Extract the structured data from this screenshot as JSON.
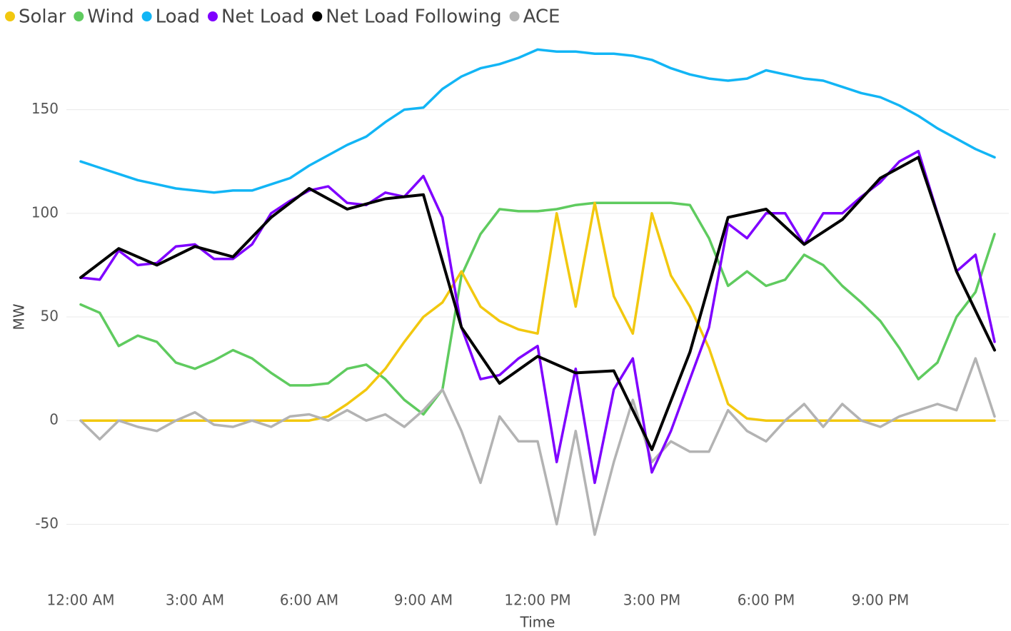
{
  "chart_data": {
    "type": "line",
    "x_label": "Time",
    "y_label": "MW",
    "xlim": [
      0,
      24
    ],
    "ylim": [
      -65,
      185
    ],
    "xticks": [
      {
        "value": 0,
        "label": "12:00 AM"
      },
      {
        "value": 3,
        "label": "3:00 AM"
      },
      {
        "value": 6,
        "label": "6:00 AM"
      },
      {
        "value": 9,
        "label": "9:00 AM"
      },
      {
        "value": 12,
        "label": "12:00 PM"
      },
      {
        "value": 15,
        "label": "3:00 PM"
      },
      {
        "value": 18,
        "label": "6:00 PM"
      },
      {
        "value": 21,
        "label": "9:00 PM"
      }
    ],
    "yticks": [
      -50,
      0,
      50,
      100,
      150
    ],
    "grid": true,
    "legend": "top-left",
    "x": [
      0,
      0.5,
      1,
      1.5,
      2,
      2.5,
      3,
      3.5,
      4,
      4.5,
      5,
      5.5,
      6,
      6.5,
      7,
      7.5,
      8,
      8.5,
      9,
      9.5,
      10,
      10.5,
      11,
      11.5,
      12,
      12.5,
      13,
      13.5,
      14,
      14.5,
      15,
      15.5,
      16,
      16.5,
      17,
      17.5,
      18,
      18.5,
      19,
      19.5,
      20,
      20.5,
      21,
      21.5,
      22,
      22.5,
      23,
      23.5,
      24
    ],
    "series": [
      {
        "name": "Solar",
        "color": "#F2C80F",
        "values": [
          0,
          0,
          0,
          0,
          0,
          0,
          0,
          0,
          0,
          0,
          0,
          0,
          0,
          2,
          8,
          15,
          25,
          38,
          50,
          57,
          72,
          55,
          48,
          44,
          42,
          100,
          55,
          105,
          60,
          42,
          100,
          70,
          55,
          35,
          8,
          1,
          0,
          0,
          0,
          0,
          0,
          0,
          0,
          0,
          0,
          0,
          0,
          0,
          0
        ]
      },
      {
        "name": "Wind",
        "color": "#5FCB5F",
        "values": [
          56,
          52,
          36,
          41,
          38,
          28,
          25,
          29,
          34,
          30,
          23,
          17,
          17,
          18,
          25,
          27,
          20,
          10,
          3,
          15,
          70,
          90,
          102,
          101,
          101,
          102,
          104,
          105,
          105,
          105,
          105,
          105,
          104,
          88,
          65,
          72,
          65,
          68,
          80,
          75,
          65,
          57,
          48,
          35,
          20,
          28,
          50,
          62,
          90
        ]
      },
      {
        "name": "Load",
        "color": "#12B5F5",
        "values": [
          125,
          122,
          119,
          116,
          114,
          112,
          111,
          110,
          111,
          111,
          114,
          117,
          123,
          128,
          133,
          137,
          144,
          150,
          151,
          160,
          166,
          170,
          172,
          175,
          179,
          178,
          178,
          177,
          177,
          176,
          174,
          170,
          167,
          165,
          164,
          165,
          169,
          167,
          165,
          164,
          161,
          158,
          156,
          152,
          147,
          141,
          136,
          131,
          127
        ]
      },
      {
        "name": "Net Load",
        "color": "#7F00FF",
        "values": [
          69,
          68,
          82,
          75,
          76,
          84,
          85,
          78,
          78,
          85,
          100,
          106,
          111,
          113,
          105,
          104,
          110,
          108,
          118,
          98,
          45,
          20,
          22,
          30,
          36,
          -20,
          25,
          -30,
          15,
          30,
          -25,
          -5,
          20,
          45,
          95,
          88,
          100,
          100,
          85,
          100,
          100,
          108,
          115,
          125,
          130,
          100,
          72,
          80,
          38
        ]
      },
      {
        "name": "Net Load Following",
        "color": "#000000",
        "x": [
          0,
          1,
          2,
          3,
          4,
          5,
          6,
          7,
          8,
          9,
          10,
          11,
          12,
          13,
          14,
          15,
          16,
          17,
          18,
          19,
          20,
          21,
          22,
          23,
          24
        ],
        "values": [
          69,
          83,
          75,
          84,
          79,
          98,
          112,
          102,
          107,
          109,
          45,
          18,
          31,
          23,
          24,
          -14,
          33,
          98,
          102,
          85,
          97,
          117,
          127,
          72,
          34
        ]
      },
      {
        "name": "ACE",
        "color": "#B3B3B3",
        "values": [
          0,
          -9,
          0,
          -3,
          -5,
          0,
          4,
          -2,
          -3,
          0,
          -3,
          2,
          3,
          0,
          5,
          0,
          3,
          -3,
          5,
          15,
          -5,
          -30,
          2,
          -10,
          -10,
          -50,
          -5,
          -55,
          -20,
          10,
          -20,
          -10,
          -15,
          -15,
          5,
          -5,
          -10,
          0,
          8,
          -3,
          8,
          0,
          -3,
          2,
          5,
          8,
          5,
          30,
          2
        ]
      }
    ]
  }
}
